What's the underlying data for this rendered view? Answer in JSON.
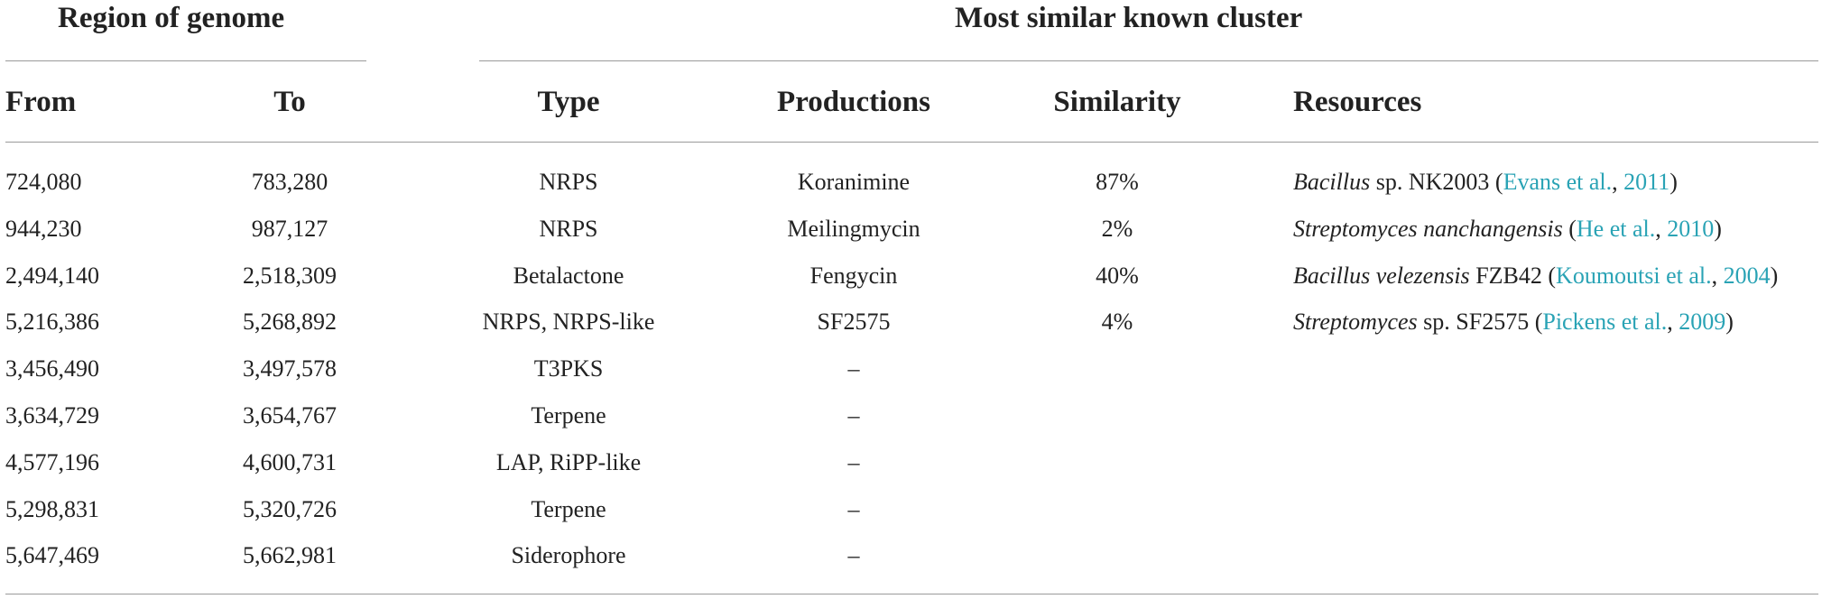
{
  "group_headers": {
    "region": "Region of genome",
    "cluster": "Most similar known cluster"
  },
  "columns": {
    "from": "From",
    "to": "To",
    "type": "Type",
    "productions": "Productions",
    "similarity": "Similarity",
    "resources": "Resources"
  },
  "rows": [
    {
      "from": "724,080",
      "to": "783,280",
      "type": "NRPS",
      "productions": "Koranimine",
      "similarity": "87%",
      "resource": {
        "organism_italic": "Bacillus",
        "organism_rest": " sp. NK2003",
        "open": " (",
        "author": "Evans et al.",
        "sep": ", ",
        "year": "2011",
        "close": ")"
      }
    },
    {
      "from": "944,230",
      "to": "987,127",
      "type": "NRPS",
      "productions": "Meilingmycin",
      "similarity": "2%",
      "resource": {
        "organism_italic": "Streptomyces nanchangensis",
        "organism_rest": "",
        "open": " (",
        "author": "He et al.",
        "sep": ", ",
        "year": "2010",
        "close": ")"
      }
    },
    {
      "from": "2,494,140",
      "to": "2,518,309",
      "type": "Betalactone",
      "productions": "Fengycin",
      "similarity": "40%",
      "resource": {
        "organism_italic": "Bacillus velezensis",
        "organism_rest": " FZB42",
        "open": " (",
        "author": "Koumoutsi et al.",
        "sep": ", ",
        "year": "2004",
        "close": ")"
      }
    },
    {
      "from": "5,216,386",
      "to": "5,268,892",
      "type": "NRPS, NRPS-like",
      "productions": "SF2575",
      "similarity": "4%",
      "resource": {
        "organism_italic": "Streptomyces",
        "organism_rest": " sp. SF2575",
        "open": " (",
        "author": "Pickens et al.",
        "sep": ", ",
        "year": "2009",
        "close": ")"
      }
    },
    {
      "from": "3,456,490",
      "to": "3,497,578",
      "type": "T3PKS",
      "productions": "–",
      "similarity": "",
      "resource": null
    },
    {
      "from": "3,634,729",
      "to": "3,654,767",
      "type": "Terpene",
      "productions": "–",
      "similarity": "",
      "resource": null
    },
    {
      "from": "4,577,196",
      "to": "4,600,731",
      "type": "LAP, RiPP-like",
      "productions": "–",
      "similarity": "",
      "resource": null
    },
    {
      "from": "5,298,831",
      "to": "5,320,726",
      "type": "Terpene",
      "productions": "–",
      "similarity": "",
      "resource": null
    },
    {
      "from": "5,647,469",
      "to": "5,662,981",
      "type": "Siderophore",
      "productions": "–",
      "similarity": "",
      "resource": null
    }
  ],
  "colors": {
    "text": "#222222",
    "link": "#2aa3b5",
    "rule": "#9a9a9a"
  }
}
